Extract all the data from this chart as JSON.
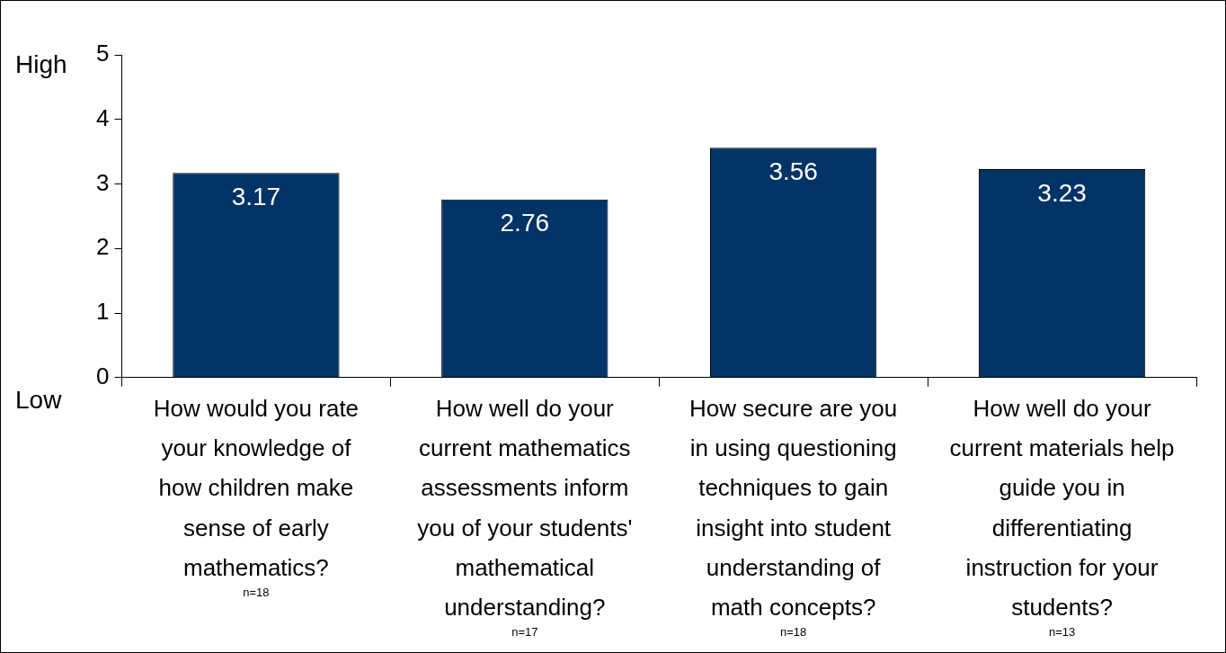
{
  "chart_data": {
    "type": "bar",
    "categories": [
      "How would you rate your knowledge of how children make sense of early mathematics?",
      "How well do your current mathematics assessments inform you of your students' mathematical understanding?",
      "How secure are you in using questioning techniques to gain insight into student understanding of math concepts?",
      "How well do your current materials help guide you in differentiating instruction for your students?"
    ],
    "values": [
      3.17,
      2.76,
      3.56,
      3.23
    ],
    "color": "#003366",
    "ylim": [
      0,
      5
    ],
    "yticks": [
      0,
      1,
      2,
      3,
      4,
      5
    ],
    "grid": false,
    "legend": false,
    "data_labels": true,
    "annotations": [
      "High",
      "Low",
      "n=18",
      "n=17",
      "n=18",
      "n=13"
    ]
  }
}
